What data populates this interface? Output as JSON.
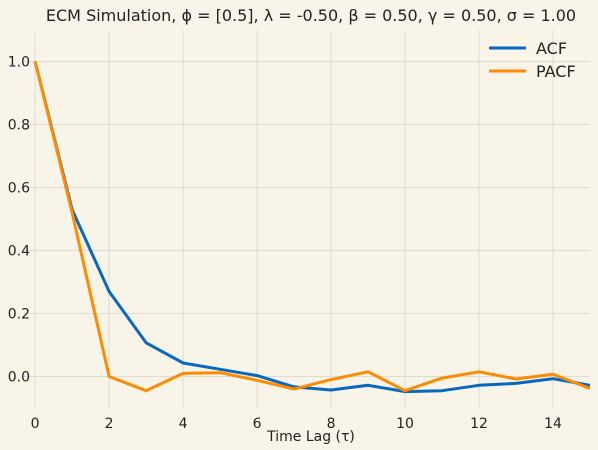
{
  "chart_data": {
    "type": "line",
    "title": "ECM Simulation, ϕ = [0.5], λ = -0.50, β = 0.50, γ = 0.50, σ = 1.00",
    "xlabel": "Time Lag (τ)",
    "ylabel": "",
    "xlim": [
      -0.3,
      15
    ],
    "ylim": [
      -0.1,
      1.1
    ],
    "x_ticks": [
      0,
      2,
      4,
      6,
      8,
      10,
      12,
      14
    ],
    "y_ticks": [
      0.0,
      0.2,
      0.4,
      0.6,
      0.8,
      1.0
    ],
    "x_tick_labels": [
      "0",
      "2",
      "4",
      "6",
      "8",
      "10",
      "12",
      "14"
    ],
    "y_tick_labels": [
      "0.0",
      "0.2",
      "0.4",
      "0.6",
      "0.8",
      "1.0"
    ],
    "grid": true,
    "legend_position": "top-right",
    "x": [
      0,
      1,
      2,
      3,
      4,
      5,
      6,
      7,
      8,
      9,
      10,
      11,
      12,
      13,
      14,
      15
    ],
    "series": [
      {
        "name": "ACF",
        "color": "#0868c0",
        "values": [
          1.0,
          0.53,
          0.27,
          0.107,
          0.043,
          0.023,
          0.003,
          -0.033,
          -0.043,
          -0.028,
          -0.048,
          -0.045,
          -0.028,
          -0.022,
          -0.007,
          -0.028
        ]
      },
      {
        "name": "PACF",
        "color": "#ff8c00",
        "values": [
          1.0,
          0.52,
          0.0,
          -0.045,
          0.01,
          0.012,
          -0.012,
          -0.04,
          -0.01,
          0.015,
          -0.045,
          -0.005,
          0.015,
          -0.008,
          0.007,
          -0.038
        ]
      }
    ]
  }
}
